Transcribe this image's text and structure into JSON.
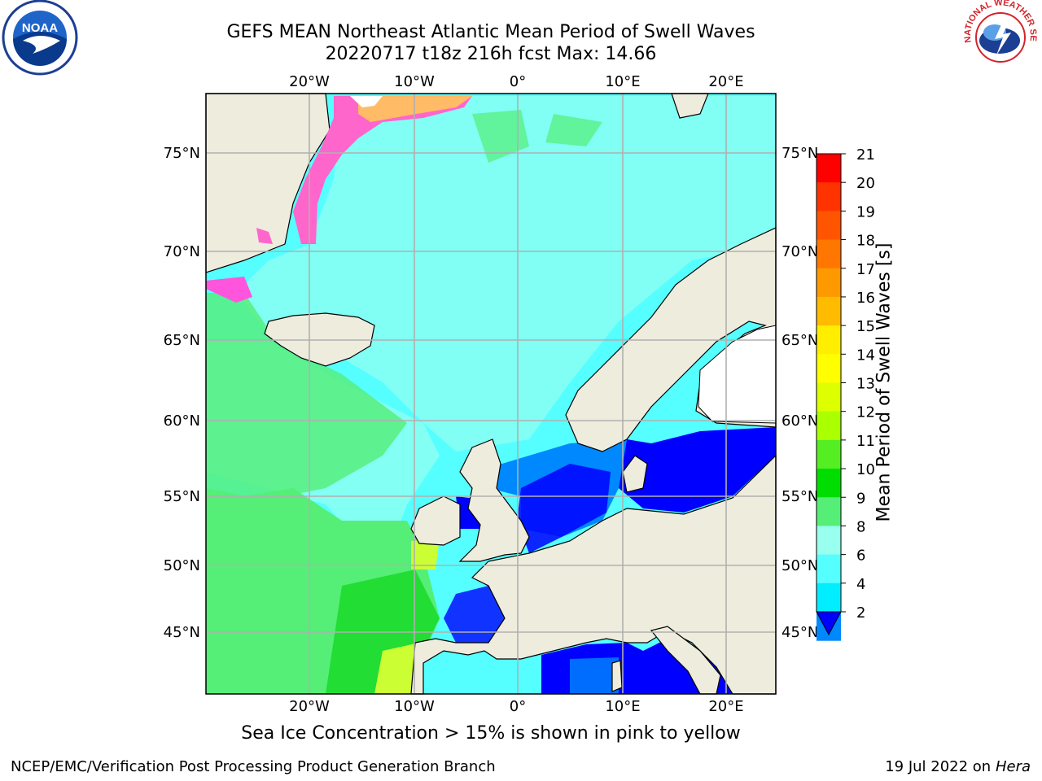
{
  "title_line1": "GEFS MEAN Northeast Atlantic Mean Period of Swell Waves",
  "title_line2": "20220717 t18z 216h fcst   Max: 14.66",
  "lon_labels": [
    "20°W",
    "10°W",
    "0°",
    "10°E",
    "20°E"
  ],
  "lat_labels": [
    "75°N",
    "70°N",
    "65°N",
    "60°N",
    "55°N",
    "50°N",
    "45°N"
  ],
  "colorbar": {
    "label": "Mean Period of Swell Waves [s]",
    "ticks": [
      "21",
      "20",
      "19",
      "18",
      "17",
      "16",
      "15",
      "14",
      "13",
      "12",
      "11",
      "10",
      "9",
      "8",
      "6",
      "4",
      "2"
    ],
    "colors": [
      "#ff0000",
      "#ff3300",
      "#ff5500",
      "#ff7700",
      "#ff9900",
      "#ffbb00",
      "#ffee00",
      "#ffff00",
      "#ddff00",
      "#aaff00",
      "#55ee22",
      "#00dd00",
      "#55ee77",
      "#99ffee",
      "#55ffff",
      "#00eeff",
      "#0088ff"
    ],
    "extend_color": "#0000ff"
  },
  "note": "Sea Ice Concentration > 15% is shown in pink to yellow",
  "footer_left": "NCEP/EMC/Verification Post Processing Product Generation Branch",
  "footer_date": "19 Jul 2022 on ",
  "footer_host": "Hera",
  "logo_left": "NOAA",
  "logo_right": "NATIONAL WEATHER SERVICE"
}
